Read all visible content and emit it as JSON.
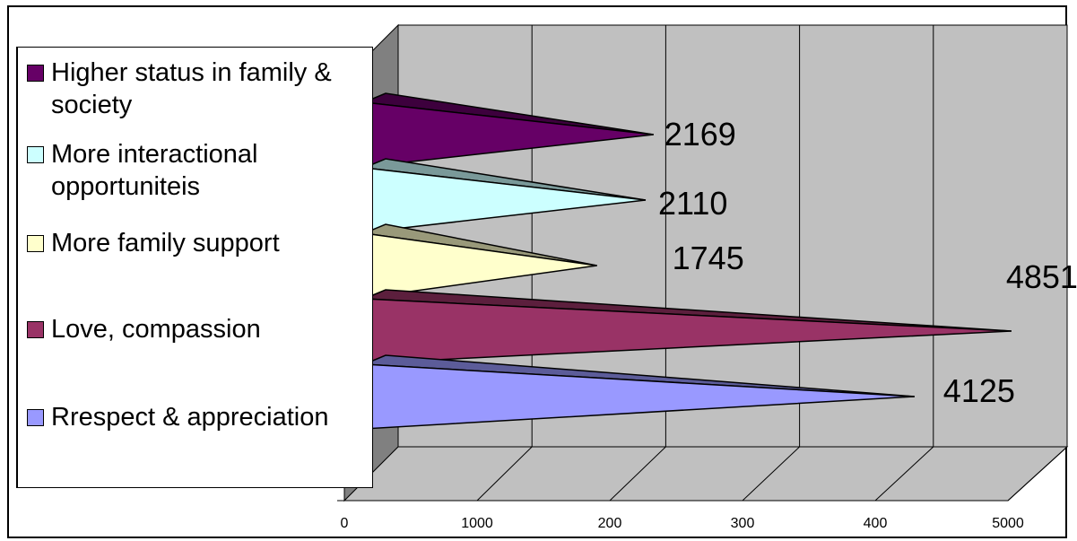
{
  "chart_data": {
    "type": "bar",
    "orientation": "horizontal",
    "style": "3d-cone",
    "categories": [
      "Higher status in family & society",
      "More interactional opportuniteis",
      "More family support",
      "Love, compassion",
      "Rrespect & appreciation"
    ],
    "values": [
      2169,
      2110,
      1745,
      4851,
      4125
    ],
    "x_ticks": [
      "0",
      "1000",
      "200",
      "300",
      "400",
      "5000"
    ],
    "xlim": [
      0,
      5000
    ],
    "grid": true,
    "legend_position": "left",
    "colors": [
      "#660066",
      "#ccffff",
      "#ffffcc",
      "#993366",
      "#9999ff"
    ]
  }
}
